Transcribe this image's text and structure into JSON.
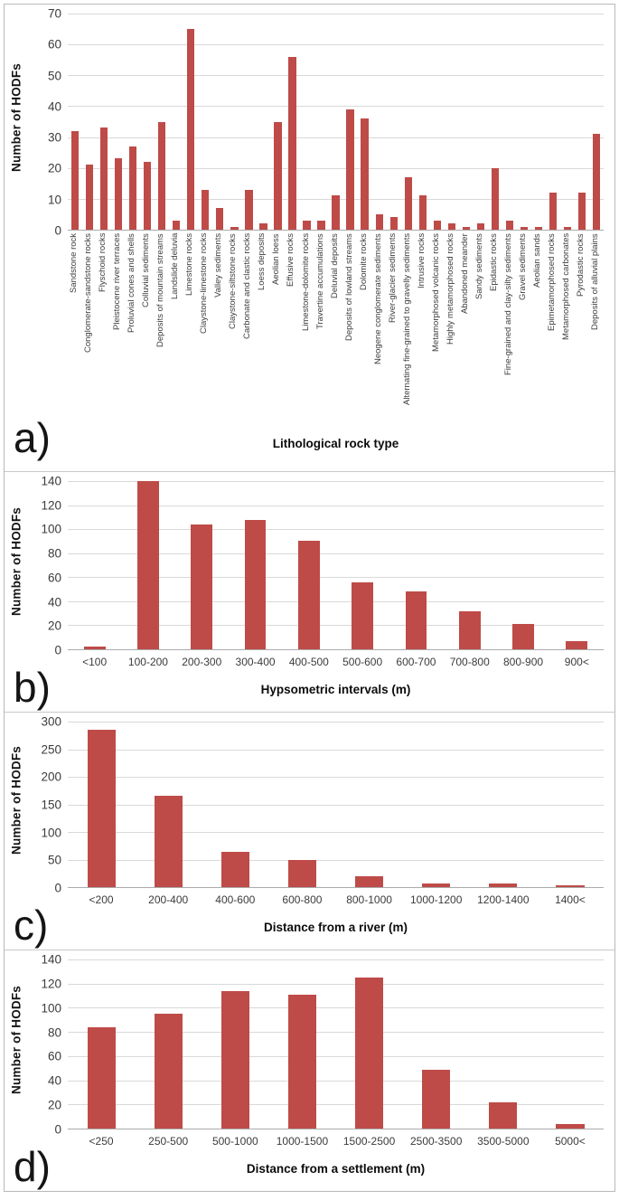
{
  "colors": {
    "bar": "#be4b48",
    "gridline": "#d9d9d9",
    "axis_line": "#ababab",
    "text": "#3b3b3b",
    "panel_border": "#c9c9c9"
  },
  "chart_data": [
    {
      "panel_label": "a)",
      "type": "bar",
      "xlabel": "Lithological rock type",
      "ylabel": "Number of HODFs",
      "ylim": [
        0,
        70
      ],
      "ytick_step": 10,
      "grid": true,
      "rotated_x_labels": true,
      "categories": [
        "Sandstone rock",
        "Conglomerate-sandstone rocks",
        "Flyschoid rocks",
        "Pleistocene river terraces",
        "Proluvial cones and shells",
        "Colluvial sediments",
        "Deposits of mountain streams",
        "Landslide deluvia",
        "Limestone rocks",
        "Claystone-limestone rocks",
        "Valley sediments",
        "Claystone-siltstone rocks",
        "Carbonate and clastic rocks",
        "Loess deposits",
        "Aeolian loess",
        "Effusive rocks",
        "Limestone-dolomite rocks",
        "Travertine accumulations",
        "Deluvial deposits",
        "Deposits of lowland streams",
        "Dolomite rocks",
        "Neogene conglomerate sediments",
        "River-glacier sediments",
        "Alternating fine-grained to gravelly sediments",
        "Intrusive rocks",
        "Metamorphosed volcanic rocks",
        "Highly metamorphosed rocks",
        "Abandoned meander",
        "Sandy sediments",
        "Epidastic rocks",
        "Fine-grained and clay-silty sediments",
        "Gravel sediments",
        "Aeolian sands",
        "Epimetamorphosed rocks",
        "Metamorphosed carbonates",
        "Pyrodastic rocks",
        "Deposits of alluvial plains"
      ],
      "values": [
        32,
        21,
        33,
        23,
        27,
        22,
        35,
        3,
        65,
        13,
        7,
        1,
        13,
        2,
        35,
        56,
        3,
        3,
        11,
        39,
        36,
        5,
        4,
        17,
        11,
        3,
        2,
        1,
        2,
        20,
        3,
        1,
        1,
        12,
        1,
        12,
        31
      ]
    },
    {
      "panel_label": "b)",
      "type": "bar",
      "xlabel": "Hypsometric intervals (m)",
      "ylabel": "Number of HODFs",
      "ylim": [
        0,
        140
      ],
      "ytick_step": 20,
      "grid": true,
      "rotated_x_labels": false,
      "categories": [
        "<100",
        "100-200",
        "200-300",
        "300-400",
        "400-500",
        "500-600",
        "600-700",
        "700-800",
        "800-900",
        "900<"
      ],
      "values": [
        2,
        140,
        104,
        108,
        90,
        56,
        48,
        32,
        21,
        7
      ]
    },
    {
      "panel_label": "c)",
      "type": "bar",
      "xlabel": "Distance from a river (m)",
      "ylabel": "Number of HODFs",
      "ylim": [
        0,
        300
      ],
      "ytick_step": 50,
      "grid": true,
      "rotated_x_labels": false,
      "categories": [
        "<200",
        "200-400",
        "400-600",
        "600-800",
        "800-1000",
        "1000-1200",
        "1200-1400",
        "1400<"
      ],
      "values": [
        285,
        165,
        64,
        50,
        20,
        6,
        6,
        3
      ]
    },
    {
      "panel_label": "d)",
      "type": "bar",
      "xlabel": "Distance from a settlement (m)",
      "ylabel": "Number of HODFs",
      "ylim": [
        0,
        140
      ],
      "ytick_step": 20,
      "grid": true,
      "rotated_x_labels": false,
      "categories": [
        "<250",
        "250-500",
        "500-1000",
        "1000-1500",
        "1500-2500",
        "2500-3500",
        "3500-5000",
        "5000<"
      ],
      "values": [
        84,
        95,
        114,
        111,
        125,
        49,
        22,
        4
      ]
    }
  ]
}
